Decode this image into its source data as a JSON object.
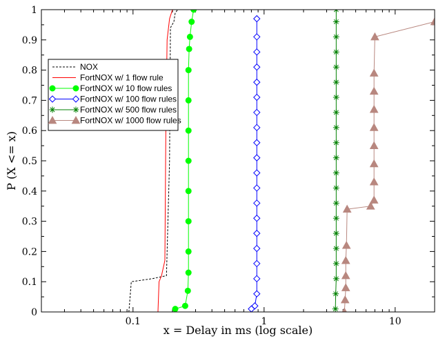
{
  "chart_data": {
    "type": "line",
    "title": "",
    "xlabel": "x = Delay in ms (log scale)",
    "ylabel": "P (X <= x)",
    "xscale": "log",
    "xlim": [
      0.02,
      20
    ],
    "ylim": [
      0,
      1
    ],
    "grid": false,
    "legend_position": "upper-left",
    "x_ticks": [
      {
        "value": 0.1,
        "label": "0.1"
      },
      {
        "value": 1,
        "label": "1"
      },
      {
        "value": 10,
        "label": "10"
      }
    ],
    "y_ticks": [
      {
        "value": 0,
        "label": "0"
      },
      {
        "value": 0.1,
        "label": "0.1"
      },
      {
        "value": 0.2,
        "label": "0.2"
      },
      {
        "value": 0.3,
        "label": "0.3"
      },
      {
        "value": 0.4,
        "label": "0.4"
      },
      {
        "value": 0.5,
        "label": "0.5"
      },
      {
        "value": 0.6,
        "label": "0.6"
      },
      {
        "value": 0.7,
        "label": "0.7"
      },
      {
        "value": 0.8,
        "label": "0.8"
      },
      {
        "value": 0.9,
        "label": "0.9"
      },
      {
        "value": 1,
        "label": "1"
      }
    ],
    "series": [
      {
        "name": "NOX",
        "color": "#000000",
        "dash": "3,2",
        "marker": "none",
        "x": [
          0.093,
          0.095,
          0.097,
          0.14,
          0.18,
          0.19,
          0.193,
          0.205,
          0.21,
          0.22
        ],
        "y": [
          0.0,
          0.05,
          0.1,
          0.11,
          0.12,
          0.5,
          0.94,
          0.96,
          0.99,
          1.0
        ]
      },
      {
        "name": "FortNOX w/ 1 flow rule",
        "color": "#ff0000",
        "dash": "",
        "marker": "none",
        "x": [
          0.155,
          0.158,
          0.165,
          0.175,
          0.178,
          0.182,
          0.19,
          0.2
        ],
        "y": [
          0.0,
          0.1,
          0.12,
          0.17,
          0.6,
          0.9,
          0.97,
          1.0
        ]
      },
      {
        "name": "FortNOX w/ 10 flow rules",
        "color": "#00ff00",
        "dash": "",
        "marker": "circle",
        "x": [
          0.21,
          0.25,
          0.262,
          0.265,
          0.265,
          0.265,
          0.265,
          0.265,
          0.265,
          0.265,
          0.265,
          0.268,
          0.272,
          0.28,
          0.29
        ],
        "y": [
          0.01,
          0.02,
          0.07,
          0.13,
          0.2,
          0.3,
          0.4,
          0.5,
          0.6,
          0.7,
          0.8,
          0.87,
          0.91,
          0.96,
          1.0
        ]
      },
      {
        "name": "FortNOX w/ 100 flow rules",
        "color": "#0000ff",
        "dash": "",
        "marker": "diamond",
        "x": [
          0.8,
          0.85,
          0.88,
          0.88,
          0.88,
          0.88,
          0.88,
          0.88,
          0.88,
          0.88,
          0.88,
          0.88,
          0.88,
          0.88,
          0.88,
          0.88,
          0.88,
          0.88,
          0.88,
          0.88,
          0.88
        ],
        "y": [
          0.01,
          0.02,
          0.06,
          0.11,
          0.16,
          0.21,
          0.26,
          0.31,
          0.36,
          0.41,
          0.46,
          0.51,
          0.56,
          0.61,
          0.66,
          0.71,
          0.76,
          0.81,
          0.86,
          0.91,
          0.97
        ]
      },
      {
        "name": "FortNOX w/ 500 flow rules",
        "color": "#008000",
        "dash": "",
        "marker": "star",
        "x": [
          3.5,
          3.52,
          3.55,
          3.55,
          3.55,
          3.55,
          3.55,
          3.55,
          3.55,
          3.55,
          3.55,
          3.55,
          3.55,
          3.55,
          3.55,
          3.55,
          3.55,
          3.55,
          3.55,
          3.55,
          3.55
        ],
        "y": [
          0.01,
          0.06,
          0.11,
          0.16,
          0.21,
          0.26,
          0.31,
          0.36,
          0.41,
          0.46,
          0.51,
          0.56,
          0.61,
          0.66,
          0.71,
          0.76,
          0.81,
          0.86,
          0.91,
          0.96,
          1.0
        ]
      },
      {
        "name": "FortNOX w/ 1000 flow rules",
        "color": "#b8877f",
        "dash": "",
        "marker": "triangle",
        "x": [
          4.1,
          4.15,
          4.2,
          4.2,
          4.2,
          4.25,
          4.3,
          6.5,
          6.9,
          6.9,
          6.9,
          6.9,
          6.9,
          6.9,
          6.9,
          6.9,
          7.0,
          20.0
        ],
        "y": [
          0.0,
          0.04,
          0.08,
          0.12,
          0.17,
          0.22,
          0.34,
          0.35,
          0.37,
          0.43,
          0.49,
          0.55,
          0.61,
          0.67,
          0.73,
          0.79,
          0.91,
          0.96
        ]
      }
    ]
  }
}
